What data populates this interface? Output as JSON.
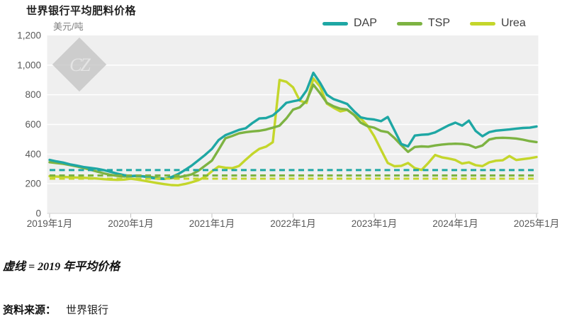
{
  "watermark": "CZ",
  "notes": {
    "dashed": "虚线 = 2019 年平均价格",
    "source_label": "资料来源：",
    "source_text": "世界银行"
  },
  "chart_data": {
    "type": "line",
    "title": "世界银行平均肥料价格",
    "ylabel": "美元/吨",
    "xlabel": "",
    "ylim": [
      0,
      1200
    ],
    "y_tick_values": [
      0,
      200,
      400,
      600,
      800,
      1000,
      1200
    ],
    "y_tick_labels": [
      "0",
      "200",
      "400",
      "600",
      "800",
      "1,000",
      "1,200"
    ],
    "x_tick_labels": [
      "2019年1月",
      "2020年1月",
      "2021年1月",
      "2022年1月",
      "2023年1月",
      "2024年1月",
      "2025年1月"
    ],
    "x_start": "2019-01",
    "x_end": "2025-01",
    "x_frequency": "monthly",
    "grid": true,
    "legend_position": "top-right",
    "dashed_lines_meaning": "2019 年平均价格 (2019 average price)",
    "series": [
      {
        "name": "DAP",
        "color": "#1EA7A4",
        "avg_2019": 292,
        "values": [
          361,
          351,
          343,
          331,
          322,
          313,
          307,
          301,
          292,
          280,
          268,
          258,
          252,
          255,
          248,
          240,
          234,
          233,
          245,
          265,
          292,
          322,
          358,
          395,
          435,
          495,
          528,
          545,
          563,
          574,
          610,
          640,
          643,
          660,
          700,
          746,
          756,
          765,
          830,
          948,
          880,
          800,
          770,
          755,
          738,
          690,
          648,
          638,
          633,
          622,
          650,
          560,
          468,
          452,
          525,
          530,
          533,
          546,
          570,
          594,
          612,
          592,
          626,
          556,
          520,
          548,
          558,
          562,
          566,
          572,
          576,
          578,
          586
        ]
      },
      {
        "name": "TSP",
        "color": "#7DB342",
        "avg_2019": 256,
        "values": [
          345,
          340,
          334,
          326,
          317,
          307,
          295,
          282,
          270,
          260,
          253,
          249,
          251,
          252,
          250,
          246,
          240,
          234,
          238,
          244,
          252,
          263,
          288,
          322,
          356,
          430,
          507,
          522,
          540,
          548,
          553,
          557,
          565,
          578,
          592,
          640,
          700,
          715,
          760,
          868,
          810,
          746,
          722,
          706,
          700,
          665,
          612,
          588,
          578,
          556,
          548,
          508,
          460,
          415,
          448,
          452,
          450,
          458,
          464,
          468,
          470,
          468,
          462,
          443,
          458,
          498,
          508,
          510,
          508,
          505,
          497,
          487,
          481
        ]
      },
      {
        "name": "Urea",
        "color": "#C4D62B",
        "avg_2019": 234,
        "values": [
          251,
          248,
          246,
          244,
          242,
          240,
          238,
          235,
          231,
          228,
          226,
          228,
          234,
          228,
          220,
          212,
          204,
          197,
          191,
          190,
          198,
          210,
          224,
          246,
          284,
          316,
          308,
          305,
          320,
          362,
          402,
          435,
          450,
          480,
          900,
          888,
          850,
          760,
          745,
          910,
          855,
          740,
          712,
          688,
          698,
          664,
          640,
          592,
          520,
          430,
          340,
          318,
          321,
          340,
          305,
          293,
          340,
          394,
          378,
          370,
          360,
          336,
          344,
          325,
          319,
          344,
          355,
          358,
          387,
          360,
          366,
          372,
          380
        ]
      }
    ]
  }
}
